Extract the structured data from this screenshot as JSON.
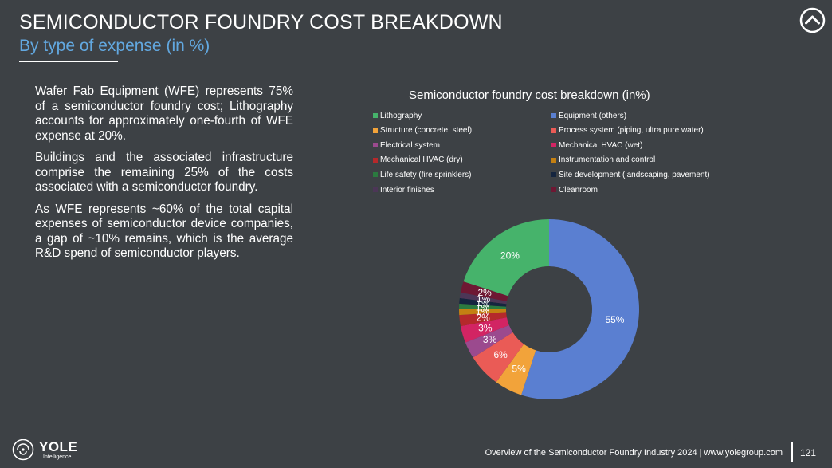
{
  "header": {
    "title": "SEMICONDUCTOR FOUNDRY COST BREAKDOWN",
    "subtitle": "By type of expense (in %)"
  },
  "text": {
    "p1": "Wafer Fab Equipment (WFE) represents 75% of a semiconductor foundry cost; Lithography accounts for approximately one-fourth of WFE expense at 20%.",
    "p2": "Buildings and the associated infrastructure comprise the remaining 25% of the costs associated with a semiconductor foundry.",
    "p3": "As WFE represents ~60% of the total capital expenses of semiconductor device companies, a gap of ~10% remains, which is the average R&D spend of semiconductor players."
  },
  "chart_data": {
    "type": "pie",
    "title": "Semiconductor foundry cost breakdown (in%)",
    "legend_position": "top",
    "categories": [
      "Equipment (others)",
      "Structure (concrete, steel)",
      "Process system (piping, ultra pure water)",
      "Electrical system",
      "Mechanical HVAC (wet)",
      "Mechanical HVAC (dry)",
      "Instrumentation and control",
      "Life safety (fire sprinklers)",
      "Site development (landscaping, pavement)",
      "Interior finishes",
      "Cleanroom",
      "Lithography"
    ],
    "values": [
      55,
      5,
      6,
      3,
      3,
      2,
      1,
      1,
      1,
      1,
      2,
      20
    ],
    "labels": [
      "55%",
      "5%",
      "6%",
      "3%",
      "3%",
      "2%",
      "1%",
      "1%",
      "1%",
      "1%",
      "2%",
      "20%"
    ],
    "colors": [
      "#5a7fd1",
      "#f2a33a",
      "#ea5b56",
      "#9b4a8e",
      "#d22463",
      "#b5292b",
      "#c48012",
      "#2b7a3f",
      "#15253f",
      "#4c3657",
      "#6e1833",
      "#46b36b"
    ],
    "legend": [
      {
        "label": "Lithography",
        "color": "#46b36b"
      },
      {
        "label": "Equipment (others)",
        "color": "#5a7fd1"
      },
      {
        "label": "Structure (concrete, steel)",
        "color": "#f2a33a"
      },
      {
        "label": "Process system (piping, ultra pure water)",
        "color": "#ea5b56"
      },
      {
        "label": "Electrical system",
        "color": "#9b4a8e"
      },
      {
        "label": "Mechanical HVAC (wet)",
        "color": "#d22463"
      },
      {
        "label": "Mechanical HVAC (dry)",
        "color": "#b5292b"
      },
      {
        "label": "Instrumentation and control",
        "color": "#c48012"
      },
      {
        "label": "Life safety (fire sprinklers)",
        "color": "#2b7a3f"
      },
      {
        "label": "Site development (landscaping, pavement)",
        "color": "#15253f"
      },
      {
        "label": "Interior finishes",
        "color": "#4c3657"
      },
      {
        "label": "Cleanroom",
        "color": "#6e1833"
      }
    ]
  },
  "footer": {
    "source": "Overview of the Semiconductor Foundry Industry 2024 | www.yolegroup.com",
    "page": "121"
  },
  "logo": {
    "name": "YOLE",
    "sub": "Intelligence"
  },
  "icons": {
    "nav": "chevron-up-circle-icon",
    "logo": "yole-logo-icon"
  }
}
